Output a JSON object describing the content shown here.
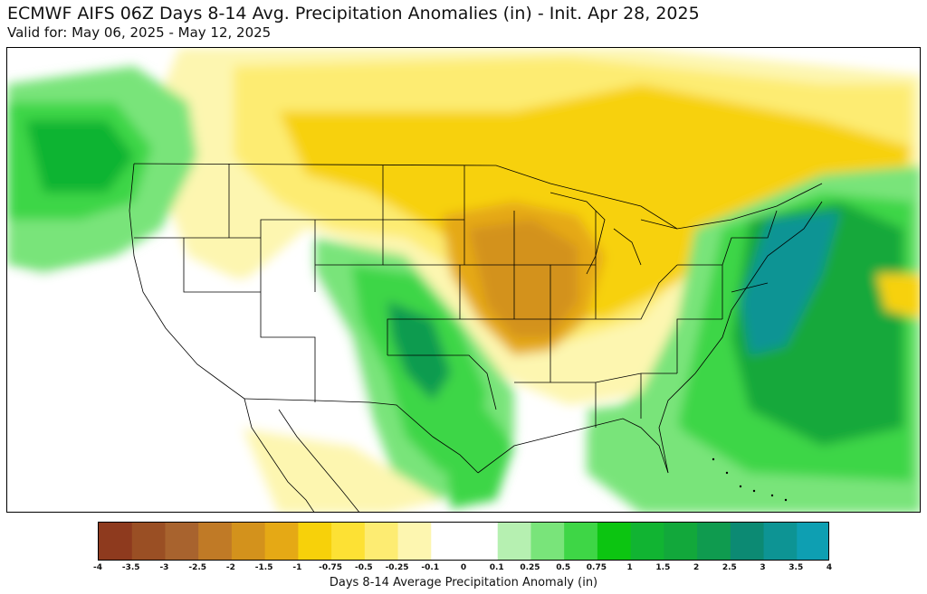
{
  "title": "ECMWF AIFS 06Z Days 8-14 Avg. Precipitation Anomalies (in) - Init. Apr 28, 2025",
  "subtitle": "Valid for: May 06, 2025 - May 12, 2025",
  "colorbar": {
    "label": "Days 8-14 Average Precipitation Anomaly (in)",
    "ticks": [
      "-4",
      "-3.5",
      "-3",
      "-2.5",
      "-2",
      "-1.5",
      "-1",
      "-0.75",
      "-0.5",
      "-0.25",
      "-0.1",
      "0",
      "0.1",
      "0.25",
      "0.5",
      "0.75",
      "1",
      "1.5",
      "2",
      "2.5",
      "3",
      "3.5",
      "4"
    ],
    "colors": [
      "#8e3a1e",
      "#9a4f24",
      "#a8632e",
      "#c07a26",
      "#d3921c",
      "#e5a915",
      "#f7d10a",
      "#fde134",
      "#fdec72",
      "#fdf6b0",
      "#ffffff",
      "#ffffff",
      "#b6f0b1",
      "#79e47a",
      "#3ed646",
      "#0cc511",
      "#11b432",
      "#12a83b",
      "#0f9b4f",
      "#0c8a73",
      "#0d9494",
      "#0e9fb2"
    ]
  },
  "legend_colors": {
    "dry_strong": "#d3921c",
    "dry_moderate": "#f7d10a",
    "dry_light": "#fdec72",
    "neutral": "#ffffff",
    "wet_light": "#b6f0b1",
    "wet_moderate": "#3ed646",
    "wet_strong": "#12a83b",
    "wet_very_strong": "#0d9494"
  }
}
